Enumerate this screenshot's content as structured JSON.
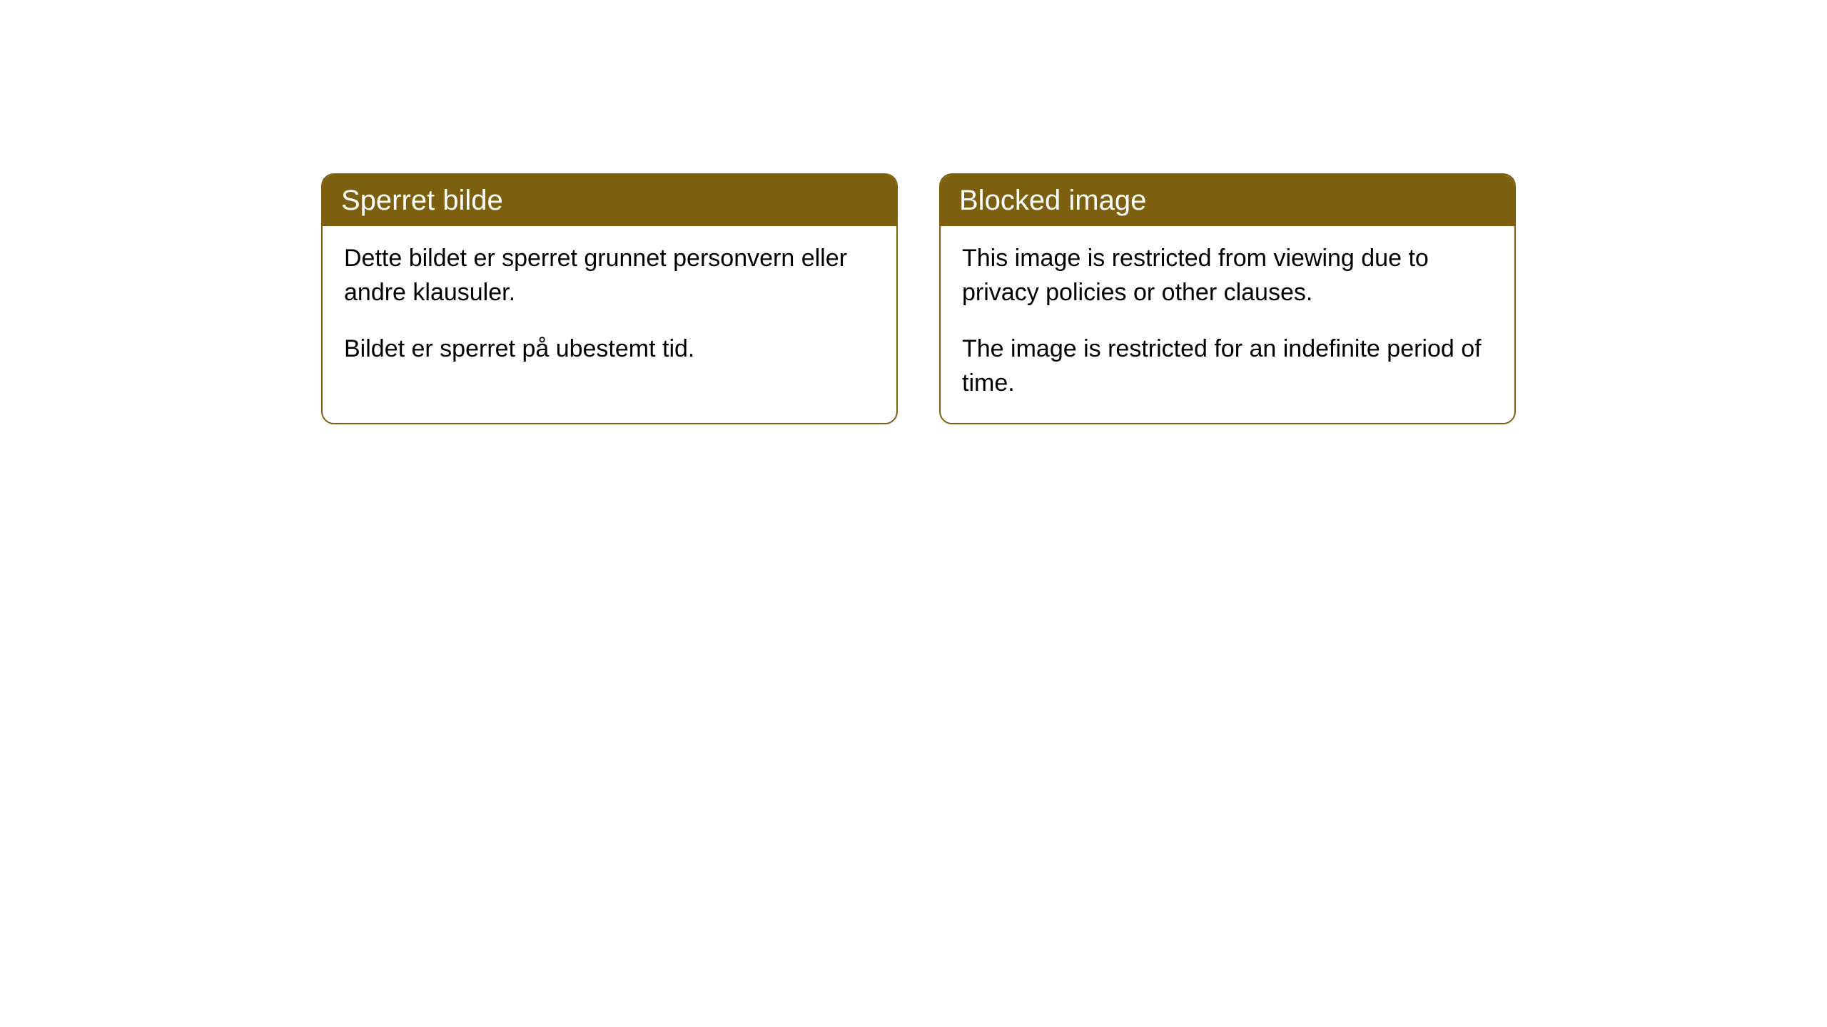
{
  "cards": [
    {
      "title": "Sperret bilde",
      "paragraph1": "Dette bildet er sperret grunnet personvern eller andre klausuler.",
      "paragraph2": "Bildet er sperret på ubestemt tid."
    },
    {
      "title": "Blocked image",
      "paragraph1": "This image is restricted from viewing due to privacy policies or other clauses.",
      "paragraph2": "The image is restricted for an indefinite period of time."
    }
  ],
  "styling": {
    "header_background": "#7d5f10",
    "header_text_color": "#ffffff",
    "border_color": "#7d5f10",
    "body_text_color": "#000000",
    "page_background": "#ffffff",
    "border_radius": 18,
    "header_font_size": 40,
    "body_font_size": 34
  }
}
